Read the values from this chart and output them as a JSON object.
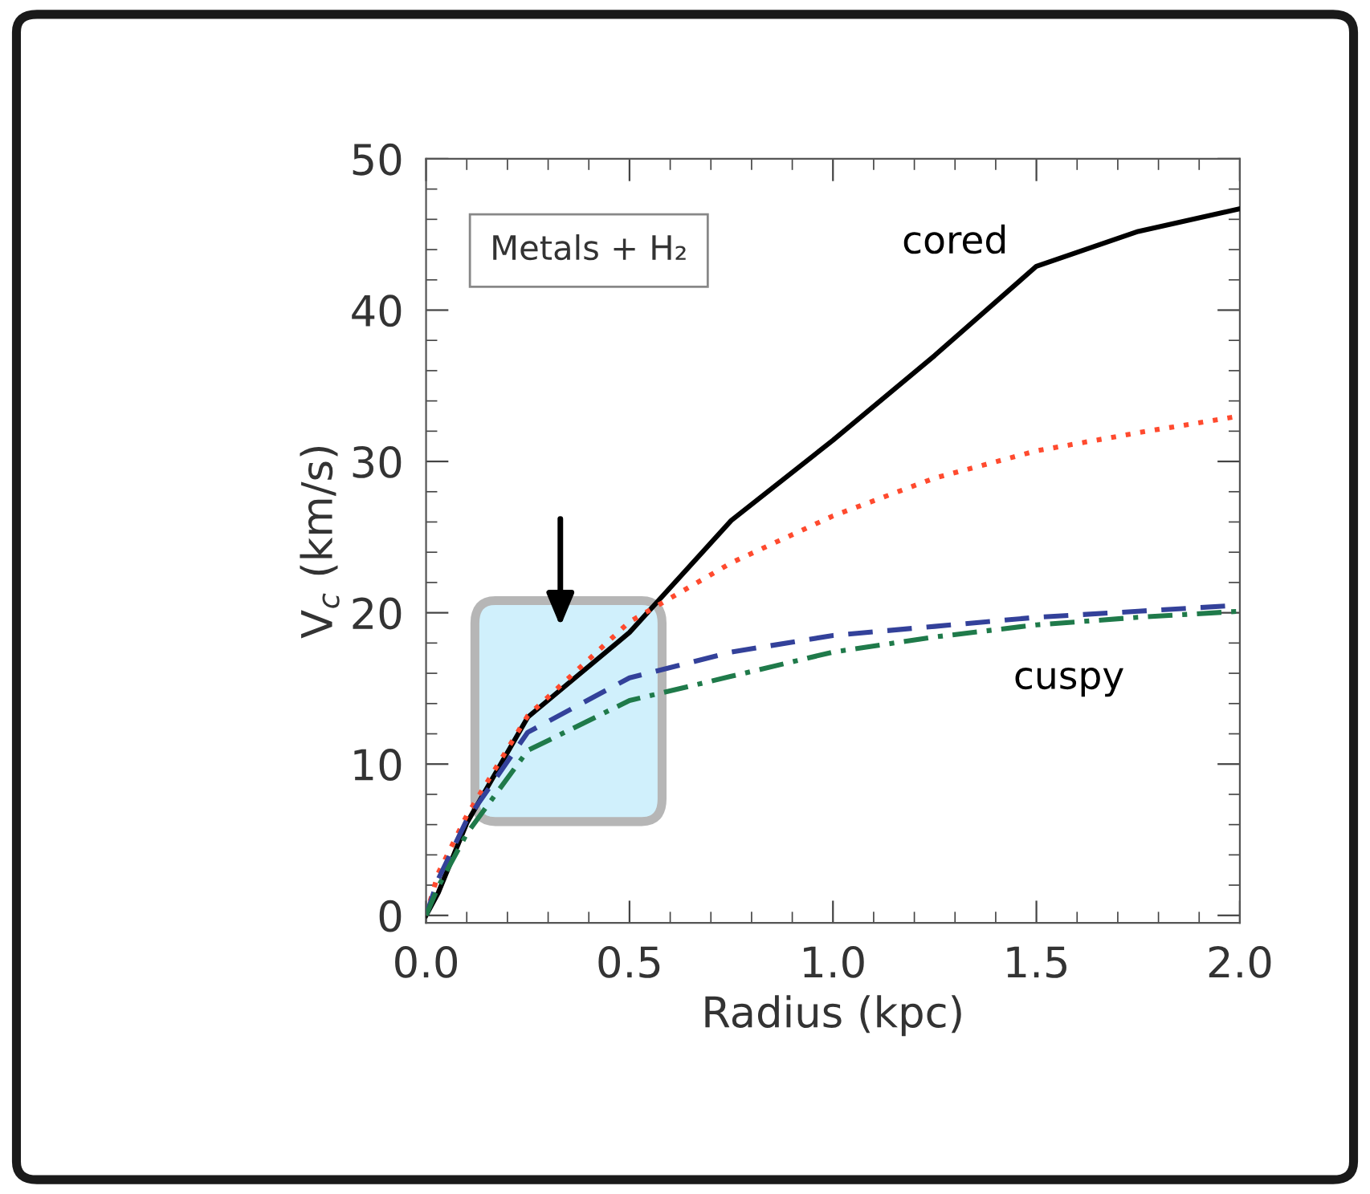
{
  "chart_data": {
    "type": "line",
    "xlabel": "Radius (kpc)",
    "ylabel": "V$_{c}$ (km/s)",
    "xlim": [
      0,
      2.0
    ],
    "ylim": [
      -0.5,
      50
    ],
    "xticks": [
      {
        "value": 0,
        "label": "0.0"
      },
      {
        "value": 0.5,
        "label": "0.5"
      },
      {
        "value": 1.0,
        "label": "1.0"
      },
      {
        "value": 1.5,
        "label": "1.5"
      },
      {
        "value": 2.0,
        "label": "2.0"
      }
    ],
    "yticks": [
      0,
      10,
      20,
      30,
      40,
      50
    ],
    "grid": false,
    "legend": false,
    "marker": "none",
    "annotations": [
      "Metals + H₂",
      "cored",
      "cuspy"
    ],
    "series": [
      {
        "color": "#000000",
        "line_style": "solid",
        "x": [
          0,
          0.03,
          0.1,
          0.25,
          0.5,
          0.75,
          1.0,
          1.25,
          1.5,
          1.75,
          2.0
        ],
        "values": [
          0,
          1.5,
          6.1,
          13.1,
          18.7,
          26.1,
          31.4,
          37.0,
          42.9,
          45.2,
          46.7
        ]
      },
      {
        "color": "#ff4a2e",
        "line_style": "dotted",
        "x": [
          0,
          0.03,
          0.1,
          0.25,
          0.5,
          0.75,
          1.0,
          1.25,
          1.5,
          1.75,
          2.0
        ],
        "values": [
          0,
          2.8,
          6.6,
          13.2,
          19.4,
          23.3,
          26.4,
          28.9,
          30.7,
          31.9,
          33.0
        ]
      },
      {
        "color": "#33419a",
        "line_style": "dashed",
        "x": [
          0,
          0.03,
          0.1,
          0.25,
          0.5,
          0.75,
          1.0,
          1.25,
          1.5,
          1.75,
          2.0
        ],
        "values": [
          0,
          2.4,
          6.3,
          12.1,
          15.7,
          17.4,
          18.5,
          19.1,
          19.7,
          20.1,
          20.5
        ]
      },
      {
        "color": "#1f7a4a",
        "line_style": "dashdot",
        "x": [
          0,
          0.03,
          0.1,
          0.25,
          0.5,
          0.75,
          1.0,
          1.25,
          1.5,
          1.75,
          2.0
        ],
        "values": [
          0,
          1.9,
          5.4,
          10.9,
          14.2,
          15.8,
          17.4,
          18.4,
          19.2,
          19.7,
          20.1
        ]
      }
    ]
  }
}
